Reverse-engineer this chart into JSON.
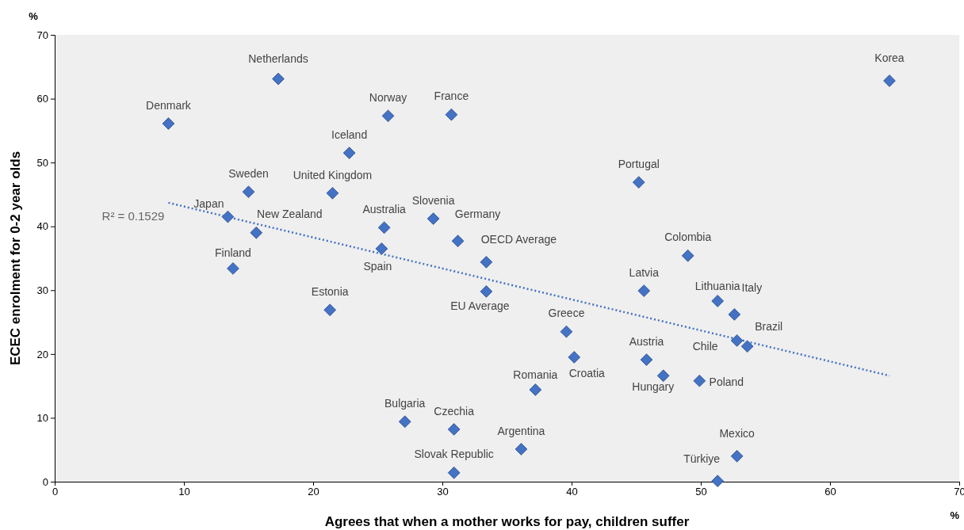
{
  "chart_data": {
    "type": "scatter",
    "xlabel": "Agrees that when a mother works for pay, children suffer",
    "ylabel": "ECEC enrolment for 0-2 year olds",
    "xlim": [
      0,
      70
    ],
    "ylim": [
      0,
      70
    ],
    "xticks": [
      0,
      10,
      20,
      30,
      40,
      50,
      60,
      70
    ],
    "yticks": [
      0,
      10,
      20,
      30,
      40,
      50,
      60,
      70
    ],
    "marker": "diamond",
    "annotations": [
      "R² = 0.1529",
      "%",
      "%"
    ],
    "series": [
      {
        "name": "Denmark",
        "color": "#4472c4",
        "x": [
          8.8
        ],
        "values": [
          56.1
        ]
      },
      {
        "name": "Netherlands",
        "color": "#4472c4",
        "x": [
          17.3
        ],
        "values": [
          63.1
        ]
      },
      {
        "name": "Norway",
        "color": "#4472c4",
        "x": [
          25.8
        ],
        "values": [
          57.3
        ]
      },
      {
        "name": "France",
        "color": "#4472c4",
        "x": [
          30.7
        ],
        "values": [
          57.5
        ]
      },
      {
        "name": "Iceland",
        "color": "#4472c4",
        "x": [
          22.8
        ],
        "values": [
          51.5
        ]
      },
      {
        "name": "Sweden",
        "color": "#4472c4",
        "x": [
          15.0
        ],
        "values": [
          45.4
        ]
      },
      {
        "name": "United Kingdom",
        "color": "#4472c4",
        "x": [
          21.5
        ],
        "values": [
          45.2
        ]
      },
      {
        "name": "Japan",
        "color": "#4472c4",
        "x": [
          13.4
        ],
        "values": [
          41.5
        ]
      },
      {
        "name": "New Zealand",
        "color": "#4472c4",
        "x": [
          15.6
        ],
        "values": [
          39.0
        ]
      },
      {
        "name": "Finland",
        "color": "#4472c4",
        "x": [
          13.8
        ],
        "values": [
          33.4
        ]
      },
      {
        "name": "Australia",
        "color": "#4472c4",
        "x": [
          25.5
        ],
        "values": [
          39.8
        ]
      },
      {
        "name": "Spain",
        "color": "#4472c4",
        "x": [
          25.3
        ],
        "values": [
          36.5
        ]
      },
      {
        "name": "Slovenia",
        "color": "#4472c4",
        "x": [
          29.3
        ],
        "values": [
          41.2
        ]
      },
      {
        "name": "Germany",
        "color": "#4472c4",
        "x": [
          31.2
        ],
        "values": [
          37.7
        ]
      },
      {
        "name": "OECD Average",
        "color": "#4472c4",
        "x": [
          33.4
        ],
        "values": [
          34.4
        ]
      },
      {
        "name": "EU Average",
        "color": "#4472c4",
        "x": [
          33.4
        ],
        "values": [
          29.8
        ]
      },
      {
        "name": "Estonia",
        "color": "#4472c4",
        "x": [
          21.3
        ],
        "values": [
          26.9
        ]
      },
      {
        "name": "Portugal",
        "color": "#4472c4",
        "x": [
          45.2
        ],
        "values": [
          46.9
        ]
      },
      {
        "name": "Colombia",
        "color": "#4472c4",
        "x": [
          49.0
        ],
        "values": [
          35.4
        ]
      },
      {
        "name": "Latvia",
        "color": "#4472c4",
        "x": [
          45.6
        ],
        "values": [
          29.9
        ]
      },
      {
        "name": "Lithuania",
        "color": "#4472c4",
        "x": [
          51.3
        ],
        "values": [
          28.3
        ]
      },
      {
        "name": "Italy",
        "color": "#4472c4",
        "x": [
          52.6
        ],
        "values": [
          26.2
        ]
      },
      {
        "name": "Brazil",
        "color": "#4472c4",
        "x": [
          53.6
        ],
        "values": [
          21.2
        ]
      },
      {
        "name": "Chile",
        "color": "#4472c4",
        "x": [
          52.8
        ],
        "values": [
          22.1
        ]
      },
      {
        "name": "Greece",
        "color": "#4472c4",
        "x": [
          39.6
        ],
        "values": [
          23.5
        ]
      },
      {
        "name": "Croatia",
        "color": "#4472c4",
        "x": [
          40.2
        ],
        "values": [
          19.5
        ]
      },
      {
        "name": "Austria",
        "color": "#4472c4",
        "x": [
          45.8
        ],
        "values": [
          19.1
        ]
      },
      {
        "name": "Hungary",
        "color": "#4472c4",
        "x": [
          47.1
        ],
        "values": [
          16.6
        ]
      },
      {
        "name": "Poland",
        "color": "#4472c4",
        "x": [
          49.9
        ],
        "values": [
          15.8
        ]
      },
      {
        "name": "Romania",
        "color": "#4472c4",
        "x": [
          37.2
        ],
        "values": [
          14.4
        ]
      },
      {
        "name": "Bulgaria",
        "color": "#4472c4",
        "x": [
          27.1
        ],
        "values": [
          9.4
        ]
      },
      {
        "name": "Czechia",
        "color": "#4472c4",
        "x": [
          30.9
        ],
        "values": [
          8.2
        ]
      },
      {
        "name": "Argentina",
        "color": "#4472c4",
        "x": [
          36.1
        ],
        "values": [
          5.1
        ]
      },
      {
        "name": "Slovak Republic",
        "color": "#4472c4",
        "x": [
          30.9
        ],
        "values": [
          1.4
        ]
      },
      {
        "name": "Mexico",
        "color": "#4472c4",
        "x": [
          52.8
        ],
        "values": [
          4.0
        ]
      },
      {
        "name": "Türkiye",
        "color": "#4472c4",
        "x": [
          51.3
        ],
        "values": [
          0.1
        ]
      },
      {
        "name": "Korea",
        "color": "#4472c4",
        "x": [
          64.6
        ],
        "values": [
          62.8
        ]
      },
      {
        "type": "line",
        "color": "#4472c4",
        "line_style": "dotted",
        "marker": "none",
        "x": [
          8.8,
          64.6
        ],
        "values": [
          43.7,
          16.6
        ]
      }
    ]
  }
}
